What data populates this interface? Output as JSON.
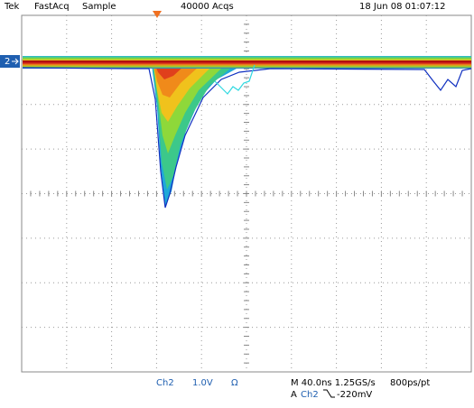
{
  "header": {
    "brand": "Tek",
    "mode": "FastAcq",
    "acquisition": "Sample",
    "count": "40000 Acqs",
    "timestamp": "18 Jun 08 01:07:12"
  },
  "channel_marker": "2",
  "footer": {
    "channel": "Ch2",
    "scale": "1.0V",
    "termination": "Ω",
    "timebase": "M 40.0ns 1.25GS/s",
    "resolution": "800ps/pt",
    "trigger": {
      "label": "A",
      "source": "Ch2",
      "level": "-220mV"
    }
  }
}
